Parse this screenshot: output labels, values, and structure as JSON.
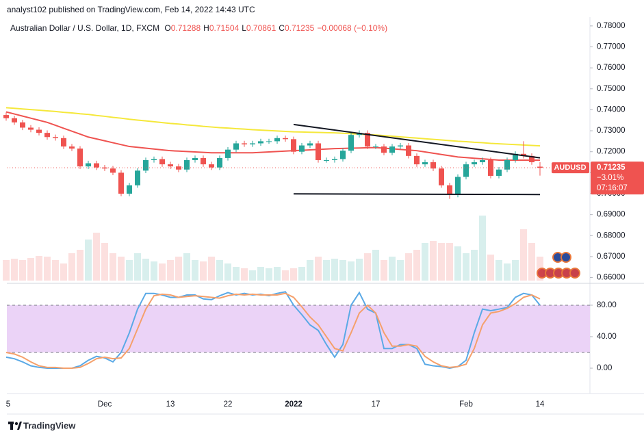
{
  "chart_data": {
    "type": "candlestick",
    "publisher": "analyst102 published on TradingView.com, Feb 14, 2022 14:43 UTC",
    "title": "Australian Dollar / U.S. Dollar, 1D, FXCM",
    "ohlc_letters": [
      "O",
      "H",
      "L",
      "C"
    ],
    "change_label": "−0.00068 (−0.10%)",
    "categories": [
      "5",
      null,
      null,
      null,
      null,
      null,
      null,
      null,
      null,
      null,
      null,
      null,
      "Dec",
      null,
      null,
      null,
      null,
      null,
      null,
      null,
      "13",
      null,
      null,
      null,
      null,
      null,
      null,
      "22",
      null,
      null,
      null,
      null,
      null,
      null,
      null,
      "2022",
      null,
      null,
      null,
      null,
      null,
      null,
      null,
      null,
      null,
      "17",
      null,
      null,
      null,
      null,
      null,
      null,
      null,
      null,
      null,
      null,
      "Feb",
      null,
      null,
      null,
      null,
      null,
      null,
      null,
      null,
      "14"
    ],
    "open": [
      0.7375,
      0.736,
      0.734,
      0.7315,
      0.7305,
      0.729,
      0.727,
      0.7265,
      0.7225,
      0.7215,
      0.713,
      0.7145,
      0.7125,
      0.712,
      0.71,
      0.7,
      0.704,
      0.711,
      0.716,
      0.7165,
      0.714,
      0.713,
      0.7115,
      0.716,
      0.717,
      0.714,
      0.7125,
      0.717,
      0.721,
      0.724,
      0.7235,
      0.724,
      0.725,
      0.725,
      0.7265,
      0.726,
      0.72,
      0.723,
      0.724,
      0.716,
      0.716,
      0.7165,
      0.7205,
      0.728,
      0.729,
      0.7225,
      0.7225,
      0.7195,
      0.7225,
      0.723,
      0.718,
      0.714,
      0.715,
      0.712,
      0.704,
      0.6995,
      0.708,
      0.714,
      0.715,
      0.716,
      0.7085,
      0.7115,
      0.716,
      0.719,
      0.718,
      0.71288
    ],
    "high": [
      0.7387,
      0.7372,
      0.7352,
      0.7327,
      0.7317,
      0.7302,
      0.7282,
      0.7277,
      0.7237,
      0.7227,
      0.7157,
      0.7157,
      0.7137,
      0.7132,
      0.7112,
      0.7052,
      0.7122,
      0.7172,
      0.7177,
      0.7177,
      0.7152,
      0.7142,
      0.7172,
      0.7182,
      0.7182,
      0.7152,
      0.7182,
      0.7222,
      0.7252,
      0.7252,
      0.7252,
      0.7262,
      0.7262,
      0.7277,
      0.7277,
      0.7272,
      0.7242,
      0.7252,
      0.7252,
      0.7172,
      0.7177,
      0.7217,
      0.7292,
      0.7302,
      0.7302,
      0.7237,
      0.7237,
      0.7237,
      0.7242,
      0.7242,
      0.7192,
      0.7162,
      0.7162,
      0.7132,
      0.7052,
      0.7092,
      0.7152,
      0.7162,
      0.7172,
      0.7172,
      0.7127,
      0.7172,
      0.7202,
      0.725,
      0.7192,
      0.71504
    ],
    "low": [
      0.7348,
      0.7328,
      0.7303,
      0.7293,
      0.7278,
      0.7258,
      0.7253,
      0.7213,
      0.7203,
      0.7118,
      0.7118,
      0.7113,
      0.7108,
      0.7088,
      0.6988,
      0.6988,
      0.7028,
      0.7098,
      0.7148,
      0.7128,
      0.7118,
      0.7103,
      0.7103,
      0.7148,
      0.7128,
      0.7113,
      0.7113,
      0.7158,
      0.7198,
      0.7223,
      0.7223,
      0.7228,
      0.7238,
      0.7238,
      0.7248,
      0.7188,
      0.7188,
      0.7218,
      0.7148,
      0.7148,
      0.7148,
      0.7153,
      0.7193,
      0.7268,
      0.7213,
      0.7213,
      0.7183,
      0.7183,
      0.7213,
      0.7168,
      0.7128,
      0.7128,
      0.7108,
      0.7028,
      0.6975,
      0.6983,
      0.7068,
      0.7128,
      0.7138,
      0.7073,
      0.7073,
      0.7103,
      0.7148,
      0.7168,
      0.7138,
      0.70861
    ],
    "close": [
      0.736,
      0.734,
      0.7315,
      0.7305,
      0.729,
      0.727,
      0.7265,
      0.7225,
      0.7215,
      0.713,
      0.7145,
      0.7125,
      0.712,
      0.71,
      0.7,
      0.704,
      0.711,
      0.716,
      0.7165,
      0.714,
      0.713,
      0.7115,
      0.716,
      0.717,
      0.714,
      0.7125,
      0.717,
      0.721,
      0.724,
      0.7235,
      0.724,
      0.725,
      0.725,
      0.7265,
      0.726,
      0.72,
      0.723,
      0.724,
      0.716,
      0.716,
      0.7165,
      0.7205,
      0.728,
      0.729,
      0.7225,
      0.7225,
      0.7195,
      0.7225,
      0.723,
      0.718,
      0.714,
      0.715,
      0.712,
      0.704,
      0.6995,
      0.708,
      0.714,
      0.715,
      0.716,
      0.7085,
      0.7115,
      0.716,
      0.719,
      0.718,
      0.715,
      0.71235
    ],
    "up_color": "#26a69a",
    "down_color": "#ef5350",
    "ylim": [
      0.6579,
      0.7842
    ],
    "yticks": [
      {
        "value": 0.66,
        "label": "0.66000"
      },
      {
        "value": 0.67,
        "label": "0.67000"
      },
      {
        "value": 0.68,
        "label": "0.68000"
      },
      {
        "value": 0.69,
        "label": "0.69000"
      },
      {
        "value": 0.7,
        "label": "0.70000"
      },
      {
        "value": 0.71,
        "label": "0.71000"
      },
      {
        "value": 0.72,
        "label": "0.72000"
      },
      {
        "value": 0.73,
        "label": "0.73000"
      },
      {
        "value": 0.74,
        "label": "0.74000"
      },
      {
        "value": 0.75,
        "label": "0.75000"
      },
      {
        "value": 0.76,
        "label": "0.76000"
      },
      {
        "value": 0.77,
        "label": "0.77000"
      },
      {
        "value": 0.78,
        "label": "0.78000"
      }
    ],
    "moving_averages": [
      {
        "color": "#f5e83b",
        "values": [
          0.741,
          0.7407,
          0.7404,
          0.7401,
          0.7398,
          0.7395,
          0.7392,
          0.7388,
          0.7385,
          0.7381,
          0.7378,
          0.7373,
          0.7369,
          0.7364,
          0.736,
          0.7355,
          0.7351,
          0.7347,
          0.7343,
          0.7339,
          0.7335,
          0.7332,
          0.7328,
          0.7325,
          0.7321,
          0.7318,
          0.7315,
          0.7313,
          0.731,
          0.7308,
          0.7305,
          0.7303,
          0.7301,
          0.7299,
          0.7297,
          0.7295,
          0.7294,
          0.7293,
          0.7292,
          0.7291,
          0.729,
          0.7288,
          0.7286,
          0.7284,
          0.7282,
          0.728,
          0.7277,
          0.7274,
          0.7271,
          0.7268,
          0.7265,
          0.7262,
          0.7259,
          0.7256,
          0.7253,
          0.725,
          0.7248,
          0.7245,
          0.7243,
          0.724,
          0.7238,
          0.7236,
          0.7234,
          0.7232,
          0.723,
          0.7228
        ]
      },
      {
        "color": "#ef5350",
        "values": [
          0.739,
          0.738,
          0.737,
          0.736,
          0.735,
          0.734,
          0.7326,
          0.7312,
          0.7298,
          0.7284,
          0.727,
          0.7261,
          0.7252,
          0.7243,
          0.7234,
          0.7225,
          0.7221,
          0.7217,
          0.7213,
          0.7209,
          0.7205,
          0.7203,
          0.7201,
          0.7199,
          0.7197,
          0.7195,
          0.7195,
          0.7195,
          0.7195,
          0.7195,
          0.7195,
          0.7197,
          0.7199,
          0.7201,
          0.7203,
          0.7205,
          0.7207,
          0.7209,
          0.7211,
          0.7213,
          0.7215,
          0.7216,
          0.7217,
          0.7218,
          0.7219,
          0.722,
          0.7217,
          0.7214,
          0.7211,
          0.7208,
          0.7205,
          0.7199,
          0.7193,
          0.7187,
          0.7181,
          0.7175,
          0.7172,
          0.7169,
          0.7166,
          0.7163,
          0.716,
          0.716,
          0.716,
          0.716,
          0.716,
          0.716
        ]
      }
    ],
    "volume": [
      30,
      32,
      30,
      33,
      36,
      35,
      30,
      25,
      40,
      45,
      60,
      70,
      55,
      40,
      35,
      30,
      40,
      32,
      28,
      25,
      30,
      35,
      40,
      30,
      28,
      35,
      30,
      25,
      20,
      18,
      15,
      20,
      18,
      20,
      15,
      18,
      20,
      30,
      35,
      30,
      32,
      30,
      28,
      32,
      40,
      45,
      30,
      35,
      30,
      40,
      45,
      55,
      58,
      55,
      55,
      50,
      40,
      45,
      95,
      38,
      30,
      25,
      30,
      75,
      55,
      35
    ],
    "trendlines": [
      {
        "x": [
          35,
          65
        ],
        "values": [
          0.733,
          0.7171
        ]
      },
      {
        "x": [
          35,
          65
        ],
        "values": [
          0.6999,
          0.6996
        ]
      }
    ],
    "last_price_label": {
      "symbol": "AUDUSD",
      "change_pct": "−3.01%",
      "countdown": "07:16:07"
    },
    "oscillator": {
      "type": "line",
      "series": [
        {
          "color": "#5aa9e6",
          "values": [
            14,
            12,
            8,
            3,
            1,
            0,
            0,
            0,
            0,
            3,
            10,
            15,
            13,
            8,
            20,
            45,
            75,
            95,
            95,
            93,
            90,
            90,
            93,
            93,
            88,
            87,
            92,
            96,
            93,
            95,
            93,
            94,
            92,
            95,
            97,
            80,
            68,
            55,
            48,
            30,
            14,
            30,
            80,
            96,
            75,
            70,
            25,
            25,
            30,
            30,
            25,
            5,
            3,
            2,
            0,
            2,
            10,
            45,
            75,
            73,
            75,
            77,
            90,
            95,
            93,
            80
          ]
        },
        {
          "color": "#f5a06b",
          "values": [
            20,
            18,
            14,
            8,
            3,
            1,
            1,
            0,
            0,
            1,
            6,
            12,
            14,
            12,
            13,
            25,
            50,
            75,
            92,
            94,
            93,
            90,
            91,
            92,
            91,
            90,
            89,
            92,
            94,
            93,
            94,
            93,
            93,
            93,
            95,
            90,
            78,
            65,
            55,
            40,
            25,
            22,
            45,
            70,
            80,
            70,
            45,
            28,
            28,
            30,
            28,
            15,
            8,
            3,
            1,
            2,
            5,
            25,
            55,
            70,
            72,
            76,
            82,
            90,
            93,
            88
          ]
        }
      ],
      "ylim": [
        -32.2,
        104.3
      ],
      "yticks": [
        {
          "value": 0,
          "label": "0.00"
        },
        {
          "value": 40,
          "label": "40.00"
        },
        {
          "value": 80,
          "label": "80.00"
        }
      ],
      "band": [
        20,
        80
      ],
      "band_color": "#ebd3f7"
    },
    "footer": "TradingView"
  }
}
